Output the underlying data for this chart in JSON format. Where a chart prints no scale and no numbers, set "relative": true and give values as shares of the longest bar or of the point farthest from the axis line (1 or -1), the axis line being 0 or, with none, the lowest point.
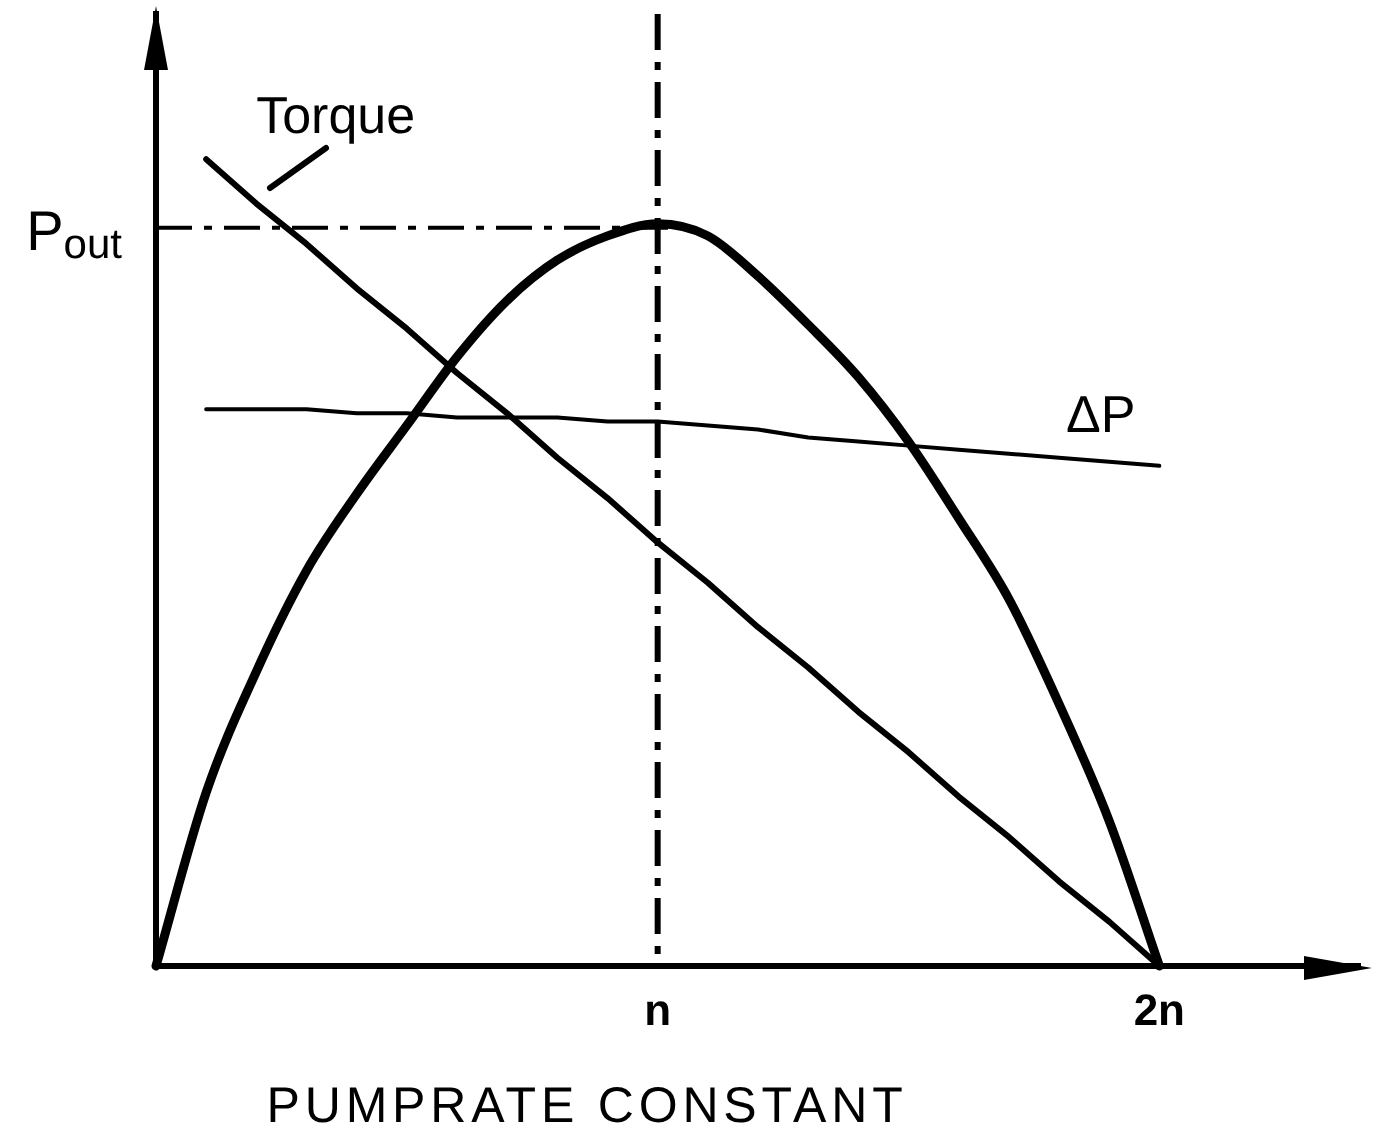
{
  "chart_data": {
    "type": "line",
    "xlabel": "PUMPRATE CONSTANT",
    "relative": true,
    "tick_labels": "x",
    "marker": "none",
    "line_style": "solid",
    "categories": [
      null,
      null,
      null,
      null,
      null,
      null,
      null,
      null,
      null,
      null,
      "n",
      null,
      null,
      null,
      null,
      null,
      null,
      null,
      null,
      null,
      "2n",
      null,
      null,
      null,
      null
    ],
    "series": [
      {
        "name": "Torque",
        "color": "#000000",
        "values": [
          null,
          1,
          0.945,
          0.895,
          0.84,
          0.79,
          0.735,
          0.685,
          0.63,
          0.58,
          0.525,
          0.475,
          0.42,
          0.37,
          0.315,
          0.265,
          0.21,
          0.16,
          0.105,
          0.055,
          0,
          null,
          null,
          null,
          null
        ]
      },
      {
        "color": "#000000",
        "values": [
          0,
          0.215,
          0.365,
          0.49,
          0.585,
          0.67,
          0.755,
          0.825,
          0.875,
          0.905,
          0.92,
          0.905,
          0.855,
          0.795,
          0.73,
          0.65,
          0.555,
          0.455,
          0.325,
          0.18,
          0,
          null,
          null,
          null,
          null
        ]
      },
      {
        "name": "ΔP",
        "color": "#000000",
        "values": [
          null,
          0.69,
          0.69,
          0.69,
          0.685,
          0.685,
          0.68,
          0.68,
          0.68,
          0.675,
          0.675,
          0.67,
          0.665,
          0.655,
          0.65,
          0.645,
          0.64,
          0.635,
          0.63,
          0.625,
          0.62,
          null,
          null,
          null,
          null
        ]
      }
    ],
    "ref_lines": [
      {
        "axis": "x",
        "value": "n",
        "line_style": "dashed",
        "color": "#000000"
      },
      {
        "axis": "y",
        "value": 0.915,
        "label": "P$_{out}$",
        "line_style": "dashed",
        "color": "#000000"
      }
    ]
  }
}
